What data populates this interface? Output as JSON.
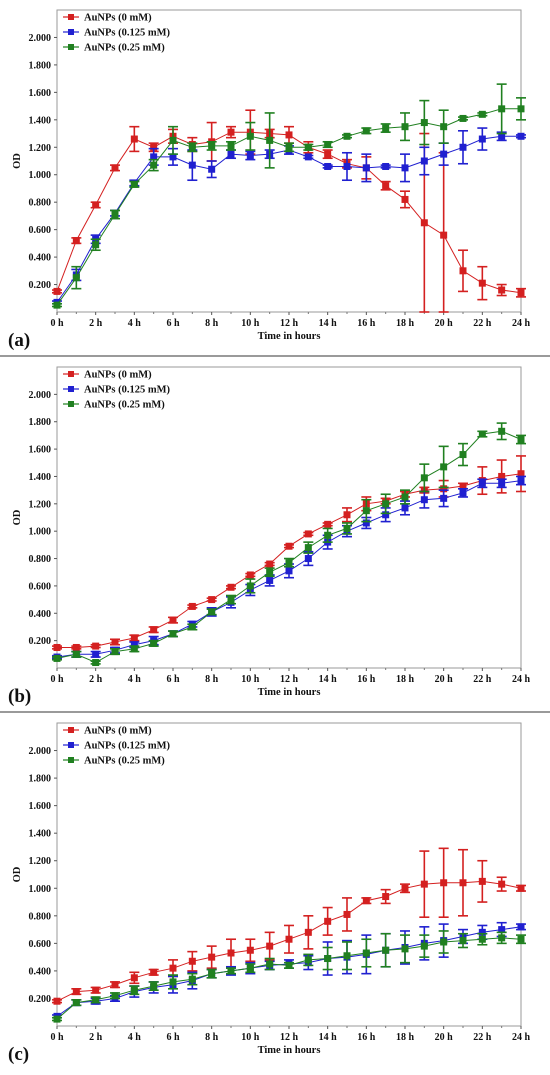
{
  "chart_data": [
    {
      "type": "line",
      "panel_label": "(a)",
      "xlabel": "Time in hours",
      "ylabel": "OD",
      "ylim": [
        0,
        2.2
      ],
      "xlim": [
        0,
        24
      ],
      "yticks": [
        "0.200",
        "0.400",
        "0.600",
        "0.800",
        "1.000",
        "1.200",
        "1.400",
        "1.600",
        "1.800",
        "2.000"
      ],
      "ytick_values": [
        0.2,
        0.4,
        0.6,
        0.8,
        1.0,
        1.2,
        1.4,
        1.6,
        1.8,
        2.0
      ],
      "xticks": [
        "0 h",
        "2 h",
        "4 h",
        "6 h",
        "8 h",
        "10 h",
        "12 h",
        "14 h",
        "16 h",
        "18 h",
        "20 h",
        "22 h",
        "24 h"
      ],
      "xtick_values": [
        0,
        2,
        4,
        6,
        8,
        10,
        12,
        14,
        16,
        18,
        20,
        22,
        24
      ],
      "grid": false,
      "legend_position": "top-left",
      "x": [
        0,
        1,
        2,
        3,
        4,
        5,
        6,
        7,
        8,
        9,
        10,
        11,
        12,
        13,
        14,
        15,
        16,
        17,
        18,
        19,
        20,
        21,
        22,
        23,
        24
      ],
      "series": [
        {
          "name": "AuNPs (0 mM)",
          "color": "#d42020",
          "values": [
            0.15,
            0.52,
            0.78,
            1.05,
            1.26,
            1.2,
            1.28,
            1.22,
            1.24,
            1.31,
            1.31,
            1.3,
            1.29,
            1.2,
            1.15,
            1.08,
            1.05,
            0.92,
            0.82,
            0.65,
            0.56,
            0.3,
            0.21,
            0.16,
            0.14
          ],
          "errors": [
            0.01,
            0.02,
            0.02,
            0.02,
            0.09,
            0.03,
            0.05,
            0.05,
            0.14,
            0.04,
            0.16,
            0.03,
            0.06,
            0.04,
            0.03,
            0.03,
            0.08,
            0.03,
            0.06,
            0.65,
            0.6,
            0.15,
            0.12,
            0.04,
            0.03
          ]
        },
        {
          "name": "AuNPs (0.125 mM)",
          "color": "#2020d0",
          "values": [
            0.07,
            0.27,
            0.53,
            0.72,
            0.94,
            1.13,
            1.13,
            1.07,
            1.04,
            1.15,
            1.14,
            1.15,
            1.18,
            1.13,
            1.06,
            1.06,
            1.05,
            1.06,
            1.05,
            1.1,
            1.15,
            1.2,
            1.26,
            1.28,
            1.28
          ],
          "errors": [
            0.01,
            0.04,
            0.03,
            0.02,
            0.02,
            0.06,
            0.06,
            0.11,
            0.06,
            0.03,
            0.03,
            0.03,
            0.03,
            0.01,
            0.01,
            0.1,
            0.1,
            0.01,
            0.1,
            0.1,
            0.08,
            0.12,
            0.08,
            0.03,
            0.01
          ]
        },
        {
          "name": "AuNPs (0.25 mM)",
          "color": "#208020",
          "values": [
            0.05,
            0.25,
            0.49,
            0.71,
            0.93,
            1.07,
            1.25,
            1.2,
            1.21,
            1.21,
            1.28,
            1.25,
            1.2,
            1.2,
            1.22,
            1.28,
            1.32,
            1.34,
            1.35,
            1.38,
            1.35,
            1.41,
            1.44,
            1.48,
            1.48
          ],
          "errors": [
            0.01,
            0.08,
            0.04,
            0.03,
            0.02,
            0.04,
            0.1,
            0.03,
            0.03,
            0.03,
            0.1,
            0.2,
            0.03,
            0.02,
            0.02,
            0.01,
            0.02,
            0.03,
            0.1,
            0.16,
            0.12,
            0.01,
            0.01,
            0.18,
            0.08
          ]
        }
      ]
    },
    {
      "type": "line",
      "panel_label": "(b)",
      "xlabel": "Time in hours",
      "ylabel": "OD",
      "ylim": [
        0,
        2.2
      ],
      "xlim": [
        0,
        24
      ],
      "yticks": [
        "0.200",
        "0.400",
        "0.600",
        "0.800",
        "1.000",
        "1.200",
        "1.400",
        "1.600",
        "1.800",
        "2.000"
      ],
      "ytick_values": [
        0.2,
        0.4,
        0.6,
        0.8,
        1.0,
        1.2,
        1.4,
        1.6,
        1.8,
        2.0
      ],
      "xticks": [
        "0 h",
        "2 h",
        "4 h",
        "6 h",
        "8 h",
        "10 h",
        "12 h",
        "14 h",
        "16 h",
        "18 h",
        "20 h",
        "22 h",
        "24 h"
      ],
      "xtick_values": [
        0,
        2,
        4,
        6,
        8,
        10,
        12,
        14,
        16,
        18,
        20,
        22,
        24
      ],
      "grid": false,
      "legend_position": "top-left",
      "x": [
        0,
        1,
        2,
        3,
        4,
        5,
        6,
        7,
        8,
        9,
        10,
        11,
        12,
        13,
        14,
        15,
        16,
        17,
        18,
        19,
        20,
        21,
        22,
        23,
        24
      ],
      "series": [
        {
          "name": "AuNPs (0 mM)",
          "color": "#d42020",
          "values": [
            0.15,
            0.15,
            0.16,
            0.19,
            0.22,
            0.28,
            0.35,
            0.45,
            0.5,
            0.59,
            0.68,
            0.76,
            0.89,
            0.98,
            1.05,
            1.12,
            1.2,
            1.22,
            1.27,
            1.3,
            1.31,
            1.33,
            1.37,
            1.4,
            1.42
          ],
          "errors": [
            0.01,
            0.01,
            0.01,
            0.02,
            0.02,
            0.02,
            0.02,
            0.01,
            0.01,
            0.01,
            0.01,
            0.01,
            0.01,
            0.01,
            0.01,
            0.05,
            0.05,
            0.02,
            0.02,
            0.02,
            0.06,
            0.02,
            0.1,
            0.12,
            0.13
          ]
        },
        {
          "name": "AuNPs (0.125 mM)",
          "color": "#2020d0",
          "values": [
            0.08,
            0.1,
            0.1,
            0.13,
            0.17,
            0.2,
            0.25,
            0.32,
            0.41,
            0.48,
            0.57,
            0.64,
            0.71,
            0.8,
            0.92,
            1.0,
            1.06,
            1.12,
            1.17,
            1.23,
            1.24,
            1.28,
            1.35,
            1.35,
            1.37
          ],
          "errors": [
            0.01,
            0.02,
            0.02,
            0.02,
            0.02,
            0.03,
            0.02,
            0.02,
            0.03,
            0.04,
            0.04,
            0.04,
            0.05,
            0.05,
            0.05,
            0.04,
            0.04,
            0.05,
            0.05,
            0.06,
            0.06,
            0.03,
            0.03,
            0.03,
            0.03
          ]
        },
        {
          "name": "AuNPs (0.25 mM)",
          "color": "#208020",
          "values": [
            0.07,
            0.1,
            0.04,
            0.12,
            0.14,
            0.18,
            0.25,
            0.3,
            0.41,
            0.5,
            0.6,
            0.7,
            0.77,
            0.88,
            0.97,
            1.02,
            1.15,
            1.2,
            1.25,
            1.39,
            1.47,
            1.56,
            1.71,
            1.73,
            1.67
          ],
          "errors": [
            0.01,
            0.02,
            0.01,
            0.02,
            0.02,
            0.02,
            0.02,
            0.02,
            0.02,
            0.03,
            0.05,
            0.03,
            0.03,
            0.04,
            0.05,
            0.04,
            0.08,
            0.07,
            0.05,
            0.1,
            0.15,
            0.08,
            0.02,
            0.06,
            0.03
          ]
        }
      ]
    },
    {
      "type": "line",
      "panel_label": "(c)",
      "xlabel": "Time in hours",
      "ylabel": "OD",
      "ylim": [
        0,
        2.2
      ],
      "xlim": [
        0,
        24
      ],
      "yticks": [
        "0.200",
        "0.400",
        "0.600",
        "0.800",
        "1.000",
        "1.200",
        "1.400",
        "1.600",
        "1.800",
        "2.000"
      ],
      "ytick_values": [
        0.2,
        0.4,
        0.6,
        0.8,
        1.0,
        1.2,
        1.4,
        1.6,
        1.8,
        2.0
      ],
      "xticks": [
        "0 h",
        "2 h",
        "4 h",
        "6 h",
        "8 h",
        "10 h",
        "12 h",
        "14 h",
        "16 h",
        "18 h",
        "20 h",
        "22 h",
        "24 h"
      ],
      "xtick_values": [
        0,
        2,
        4,
        6,
        8,
        10,
        12,
        14,
        16,
        18,
        20,
        22,
        24
      ],
      "grid": false,
      "legend_position": "top-left",
      "x": [
        0,
        1,
        2,
        3,
        4,
        5,
        6,
        7,
        8,
        9,
        10,
        11,
        12,
        13,
        14,
        15,
        16,
        17,
        18,
        19,
        20,
        21,
        22,
        23,
        24
      ],
      "series": [
        {
          "name": "AuNPs (0 mM)",
          "color": "#d42020",
          "values": [
            0.18,
            0.25,
            0.26,
            0.3,
            0.35,
            0.39,
            0.42,
            0.47,
            0.5,
            0.53,
            0.55,
            0.58,
            0.63,
            0.68,
            0.76,
            0.81,
            0.91,
            0.94,
            1.0,
            1.03,
            1.04,
            1.04,
            1.05,
            1.03,
            1.0
          ],
          "errors": [
            0.01,
            0.02,
            0.02,
            0.02,
            0.04,
            0.02,
            0.06,
            0.07,
            0.08,
            0.1,
            0.08,
            0.1,
            0.1,
            0.12,
            0.1,
            0.12,
            0.02,
            0.05,
            0.03,
            0.24,
            0.25,
            0.24,
            0.15,
            0.05,
            0.02
          ]
        },
        {
          "name": "AuNPs (0.125 mM)",
          "color": "#2020d0",
          "values": [
            0.07,
            0.17,
            0.18,
            0.2,
            0.25,
            0.28,
            0.3,
            0.33,
            0.38,
            0.4,
            0.42,
            0.44,
            0.45,
            0.46,
            0.49,
            0.5,
            0.52,
            0.55,
            0.57,
            0.6,
            0.62,
            0.65,
            0.68,
            0.7,
            0.72
          ],
          "errors": [
            0.01,
            0.02,
            0.02,
            0.02,
            0.04,
            0.04,
            0.06,
            0.06,
            0.03,
            0.03,
            0.04,
            0.03,
            0.03,
            0.05,
            0.12,
            0.12,
            0.14,
            0.12,
            0.12,
            0.12,
            0.12,
            0.05,
            0.05,
            0.05,
            0.02
          ]
        },
        {
          "name": "AuNPs (0.25 mM)",
          "color": "#208020",
          "values": [
            0.05,
            0.17,
            0.19,
            0.22,
            0.26,
            0.29,
            0.32,
            0.34,
            0.38,
            0.4,
            0.42,
            0.45,
            0.44,
            0.48,
            0.49,
            0.51,
            0.53,
            0.55,
            0.56,
            0.58,
            0.61,
            0.62,
            0.63,
            0.64,
            0.63
          ],
          "errors": [
            0.01,
            0.02,
            0.02,
            0.02,
            0.03,
            0.03,
            0.05,
            0.04,
            0.03,
            0.02,
            0.03,
            0.04,
            0.02,
            0.04,
            0.08,
            0.1,
            0.1,
            0.12,
            0.1,
            0.08,
            0.08,
            0.05,
            0.04,
            0.04,
            0.03
          ]
        }
      ]
    }
  ]
}
